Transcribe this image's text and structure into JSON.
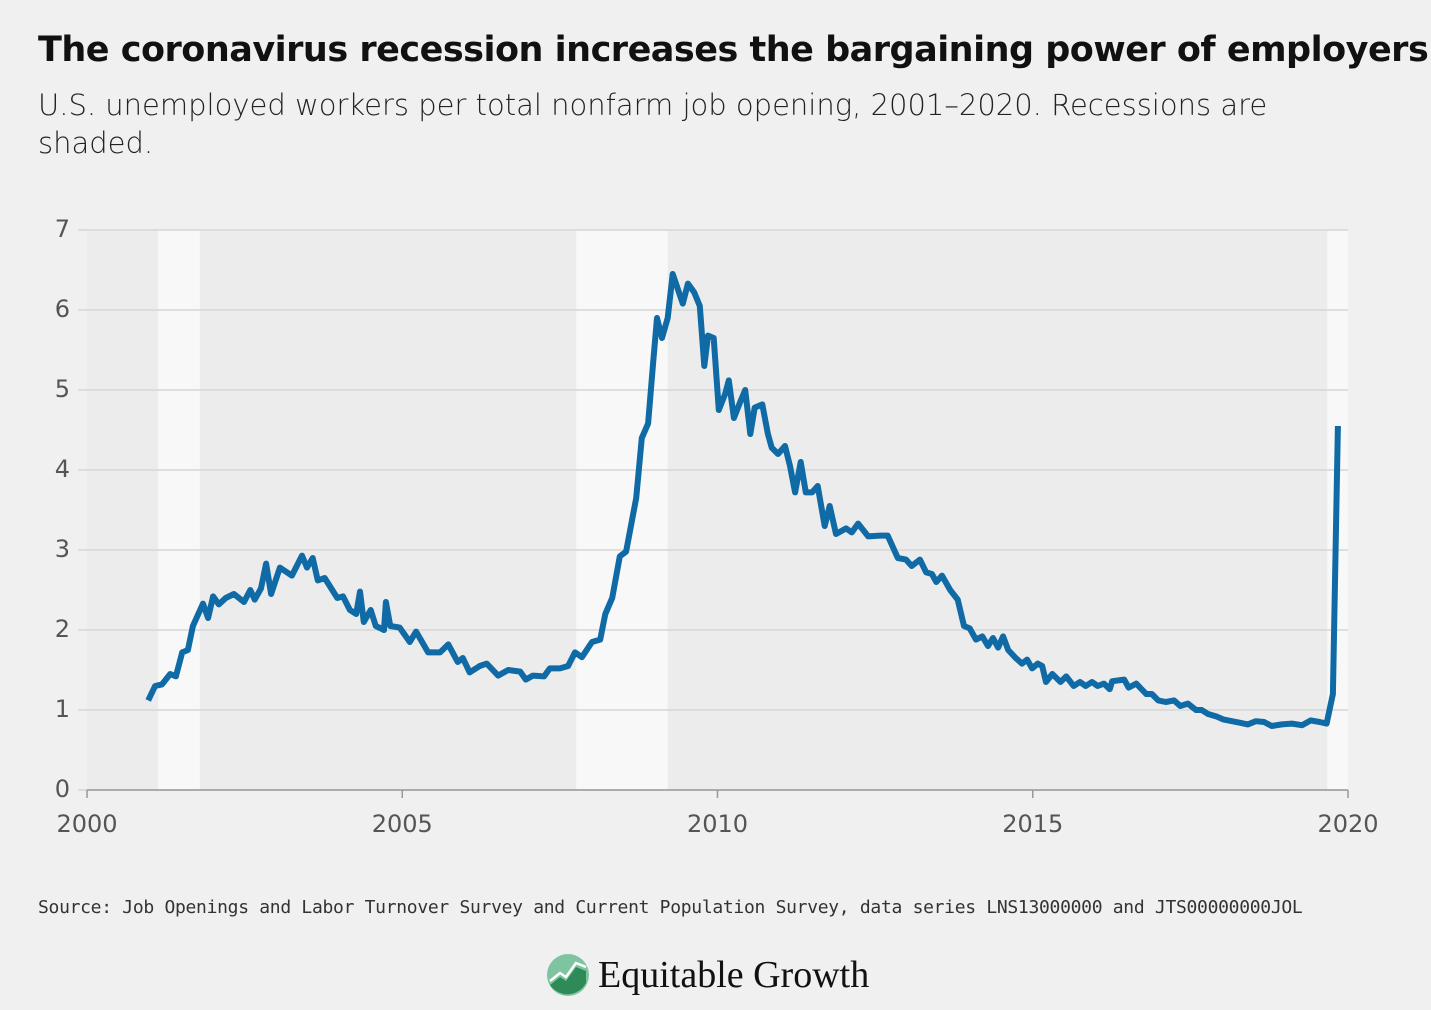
{
  "chart_data": {
    "type": "line",
    "title": "The coronavirus recession increases the bargaining power of employers",
    "subtitle": "U.S. unemployed workers per total nonfarm job opening, 2001–2020. Recessions are shaded.",
    "source": "Source: Job Openings and Labor Turnover Survey and Current Population Survey, data series LNS13000000 and JTS00000000JOL",
    "logo": "Equitable Growth",
    "color": "#0f6aa6",
    "grid": true,
    "xlim": [
      2000,
      2020
    ],
    "xticks": [
      2000,
      2005,
      2010,
      2015,
      2020
    ],
    "ylim": [
      0,
      7
    ],
    "yticks": [
      0,
      1,
      2,
      3,
      4,
      5,
      6,
      7
    ],
    "recessions": [
      [
        2001.13,
        2001.79
      ],
      [
        2007.76,
        2009.21
      ],
      [
        2019.67,
        2020.0
      ]
    ],
    "x": [
      2000.97,
      2001.08,
      2001.19,
      2001.32,
      2001.41,
      2001.51,
      2001.6,
      2001.68,
      2001.84,
      2001.92,
      2002.0,
      2002.09,
      2002.2,
      2002.33,
      2002.49,
      2002.59,
      2002.66,
      2002.76,
      2002.84,
      2002.92,
      2003.06,
      2003.25,
      2003.41,
      2003.49,
      2003.58,
      2003.66,
      2003.77,
      2003.97,
      2004.06,
      2004.17,
      2004.27,
      2004.33,
      2004.39,
      2004.5,
      2004.58,
      2004.71,
      2004.74,
      2004.81,
      2004.96,
      2005.12,
      2005.22,
      2005.41,
      2005.6,
      2005.73,
      2005.88,
      2005.96,
      2006.07,
      2006.23,
      2006.34,
      2006.52,
      2006.68,
      2006.87,
      2006.96,
      2007.07,
      2007.25,
      2007.34,
      2007.5,
      2007.63,
      2007.74,
      2007.85,
      2008.01,
      2008.14,
      2008.22,
      2008.33,
      2008.45,
      2008.55,
      2008.71,
      2008.8,
      2008.9,
      2008.98,
      2009.04,
      2009.12,
      2009.21,
      2009.29,
      2009.45,
      2009.53,
      2009.63,
      2009.72,
      2009.79,
      2009.85,
      2009.94,
      2010.02,
      2010.12,
      2010.18,
      2010.26,
      2010.36,
      2010.44,
      2010.52,
      2010.59,
      2010.71,
      2010.8,
      2010.86,
      2010.96,
      2011.07,
      2011.15,
      2011.23,
      2011.32,
      2011.4,
      2011.5,
      2011.59,
      2011.7,
      2011.78,
      2011.88,
      2012.04,
      2012.13,
      2012.23,
      2012.39,
      2012.58,
      2012.7,
      2012.86,
      2012.99,
      2013.08,
      2013.21,
      2013.31,
      2013.4,
      2013.47,
      2013.56,
      2013.69,
      2013.81,
      2013.91,
      2014.0,
      2014.1,
      2014.2,
      2014.29,
      2014.37,
      2014.45,
      2014.53,
      2014.61,
      2014.73,
      2014.83,
      2014.91,
      2014.99,
      2015.08,
      2015.15,
      2015.21,
      2015.31,
      2015.44,
      2015.53,
      2015.65,
      2015.75,
      2015.84,
      2015.94,
      2016.03,
      2016.13,
      2016.22,
      2016.26,
      2016.45,
      2016.52,
      2016.64,
      2016.8,
      2016.89,
      2016.99,
      2017.11,
      2017.24,
      2017.34,
      2017.46,
      2017.59,
      2017.68,
      2017.78,
      2017.91,
      2018.03,
      2018.16,
      2018.29,
      2018.41,
      2018.54,
      2018.67,
      2018.79,
      2018.95,
      2019.11,
      2019.27,
      2019.41,
      2019.55,
      2019.66,
      2019.76,
      2019.84
    ],
    "values": [
      1.12,
      1.3,
      1.32,
      1.45,
      1.42,
      1.72,
      1.75,
      2.05,
      2.33,
      2.15,
      2.42,
      2.32,
      2.4,
      2.45,
      2.35,
      2.5,
      2.38,
      2.52,
      2.83,
      2.45,
      2.78,
      2.68,
      2.93,
      2.78,
      2.9,
      2.62,
      2.65,
      2.4,
      2.42,
      2.25,
      2.2,
      2.48,
      2.1,
      2.25,
      2.05,
      2.0,
      2.35,
      2.05,
      2.03,
      1.85,
      1.98,
      1.72,
      1.72,
      1.82,
      1.6,
      1.65,
      1.47,
      1.55,
      1.58,
      1.43,
      1.5,
      1.48,
      1.38,
      1.43,
      1.42,
      1.52,
      1.52,
      1.55,
      1.72,
      1.66,
      1.85,
      1.88,
      2.2,
      2.4,
      2.92,
      2.98,
      3.65,
      4.4,
      4.58,
      5.35,
      5.9,
      5.65,
      5.9,
      6.45,
      6.08,
      6.33,
      6.22,
      6.05,
      5.3,
      5.68,
      5.65,
      4.75,
      4.95,
      5.12,
      4.65,
      4.85,
      5.0,
      4.45,
      4.78,
      4.82,
      4.45,
      4.28,
      4.2,
      4.3,
      4.05,
      3.72,
      4.1,
      3.72,
      3.72,
      3.8,
      3.3,
      3.55,
      3.2,
      3.27,
      3.22,
      3.33,
      3.17,
      3.18,
      3.18,
      2.9,
      2.88,
      2.8,
      2.88,
      2.72,
      2.7,
      2.6,
      2.68,
      2.5,
      2.38,
      2.05,
      2.02,
      1.88,
      1.92,
      1.8,
      1.9,
      1.78,
      1.92,
      1.75,
      1.65,
      1.58,
      1.63,
      1.52,
      1.58,
      1.55,
      1.35,
      1.45,
      1.35,
      1.42,
      1.3,
      1.35,
      1.3,
      1.35,
      1.3,
      1.33,
      1.26,
      1.36,
      1.38,
      1.28,
      1.33,
      1.2,
      1.2,
      1.12,
      1.1,
      1.12,
      1.05,
      1.08,
      1.0,
      1.0,
      0.95,
      0.92,
      0.88,
      0.86,
      0.84,
      0.82,
      0.86,
      0.85,
      0.8,
      0.82,
      0.83,
      0.81,
      0.87,
      0.85,
      0.83,
      1.2,
      4.55
    ]
  }
}
